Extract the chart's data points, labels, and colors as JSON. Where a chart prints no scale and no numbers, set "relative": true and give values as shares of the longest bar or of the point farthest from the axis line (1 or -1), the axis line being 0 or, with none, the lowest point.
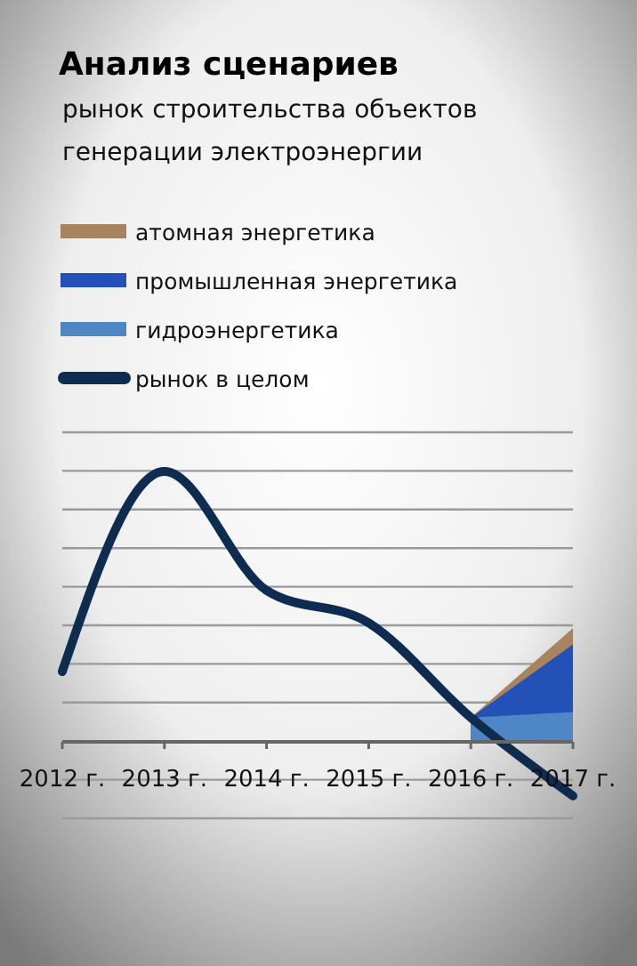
{
  "chart_data": {
    "type": "line",
    "title": "Анализ сценариев",
    "subtitle": "рынок строительства объектов генерации электроэнергии",
    "relative": true,
    "grid": "y",
    "legend": "top",
    "categories": [
      "2012 г.",
      "2013 г.",
      "2014 г.",
      "2015 г.",
      "2016 г.",
      "2017 г."
    ],
    "series": [
      {
        "name": "атомная энергетика",
        "type": "area",
        "color": "#a8845e",
        "values": [
          null,
          null,
          null,
          null,
          0.09,
          0.42
        ]
      },
      {
        "name": "промышленная энергетика",
        "type": "area",
        "color": "#2451b8",
        "values": [
          null,
          null,
          null,
          null,
          0.09,
          0.36
        ]
      },
      {
        "name": "гидроэнергетика",
        "type": "area",
        "color": "#4f86c6",
        "values": [
          null,
          null,
          null,
          null,
          0.09,
          0.11
        ]
      },
      {
        "name": "рынок в целом",
        "color": "#0d2c4f",
        "values": [
          0.26,
          1,
          0.56,
          0.44,
          0.09,
          -0.2
        ]
      }
    ]
  }
}
